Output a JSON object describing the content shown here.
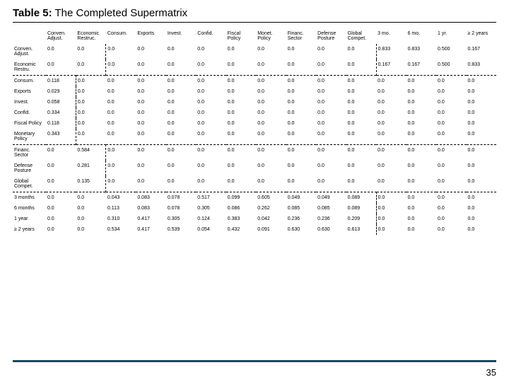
{
  "title_label": "Table 5:",
  "title_text": "The Completed Supermatrix",
  "page_number": "35",
  "footer_rule_color": "#154b61",
  "columns": [
    "Conven. Adjust.",
    "Economic Restruc.",
    "Consum.",
    "Exports",
    "Invest.",
    "Confid.",
    "Fiscal Policy",
    "Monet. Policy",
    "Financ. Sector",
    "Defense Posture",
    "Global Compet.",
    "3 mo.",
    "6 mo.",
    "1 yr.",
    "≥ 2 years"
  ],
  "rows": [
    {
      "label": "Conven. Adjust.",
      "cells": [
        "0.0",
        "0.0",
        "0.0",
        "0.0",
        "0.0",
        "0.0",
        "0.0",
        "0.0",
        "0.0",
        "0.0",
        "0.0",
        "0.833",
        "0.833",
        "0.500",
        "0.167"
      ]
    },
    {
      "label": "Economic Restru.",
      "cells": [
        "0.0",
        "0.0",
        "0.0",
        "0.0",
        "0.0",
        "0.0",
        "0.0",
        "0.0",
        "0.0",
        "0.0",
        "0.0",
        "0.167",
        "0.167",
        "0.500",
        "0.833"
      ]
    },
    {
      "label": "Consum.",
      "cells": [
        "0.118",
        "0.0",
        "0.0",
        "0.0",
        "0.0",
        "0.0",
        "0.0",
        "0.0",
        "0.0",
        "0.0",
        "0.0",
        "0.0",
        "0.0",
        "0.0",
        "0.0"
      ]
    },
    {
      "label": "Exports",
      "cells": [
        "0.029",
        "0.0",
        "0.0",
        "0.0",
        "0.0",
        "0.0",
        "0.0",
        "0.0",
        "0.0",
        "0.0",
        "0.0",
        "0.0",
        "0.0",
        "0.0",
        "0.0"
      ]
    },
    {
      "label": "Invest.",
      "cells": [
        "0.058",
        "0.0",
        "0.0",
        "0.0",
        "0.0",
        "0.0",
        "0.0",
        "0.0",
        "0.0",
        "0.0",
        "0.0",
        "0.0",
        "0.0",
        "0.0",
        "0.0"
      ]
    },
    {
      "label": "Confid.",
      "cells": [
        "0.334",
        "0.0",
        "0.0",
        "0.0",
        "0.0",
        "0.0",
        "0.0",
        "0.0",
        "0.0",
        "0.0",
        "0.0",
        "0.0",
        "0.0",
        "0.0",
        "0.0"
      ]
    },
    {
      "label": "Fiscal Policy",
      "cells": [
        "0.118",
        "0.0",
        "0.0",
        "0.0",
        "0.0",
        "0.0",
        "0.0",
        "0.0",
        "0.0",
        "0.0",
        "0.0",
        "0.0",
        "0.0",
        "0.0",
        "0.0"
      ]
    },
    {
      "label": "Monetary Policy",
      "cells": [
        "0.343",
        "0.0",
        "0.0",
        "0.0",
        "0.0",
        "0.0",
        "0.0",
        "0.0",
        "0.0",
        "0.0",
        "0.0",
        "0.0",
        "0.0",
        "0.0",
        "0.0"
      ]
    },
    {
      "label": "Financ. Sector",
      "cells": [
        "0.0",
        "0.584",
        "0.0",
        "0.0",
        "0.0",
        "0.0",
        "0.0",
        "0.0",
        "0.0",
        "0.0",
        "0.0",
        "0.0",
        "0.0",
        "0.0",
        "0.0"
      ]
    },
    {
      "label": "Defense Posture",
      "cells": [
        "0.0",
        "0.281",
        "0.0",
        "0.0",
        "0.0",
        "0.0",
        "0.0",
        "0.0",
        "0.0",
        "0.0",
        "0.0",
        "0.0",
        "0.0",
        "0.0",
        "0.0"
      ]
    },
    {
      "label": "Global Compet.",
      "cells": [
        "0.0",
        "0.135",
        "0.0",
        "0.0",
        "0.0",
        "0.0",
        "0.0",
        "0.0",
        "0.0",
        "0.0",
        "0.0",
        "0.0",
        "0.0",
        "0.0",
        "0.0"
      ]
    },
    {
      "label": "3 months",
      "cells": [
        "0.0",
        "0.0",
        "0.043",
        "0.083",
        "0.078",
        "0.517",
        "0.099",
        "0.605",
        "0.049",
        "0.049",
        "0.089",
        "0.0",
        "0.0",
        "0.0",
        "0.0"
      ]
    },
    {
      "label": "6 months",
      "cells": [
        "0.0",
        "0.0",
        "0.113",
        "0.083",
        "0.078",
        "0.305",
        "0.086",
        "0.262",
        "0.085",
        "0.085",
        "0.089",
        "0.0",
        "0.0",
        "0.0",
        "0.0"
      ]
    },
    {
      "label": "1 year",
      "cells": [
        "0.0",
        "0.0",
        "0.310",
        "0.417",
        "0.305",
        "0.124",
        "0.383",
        "0.042",
        "0.236",
        "0.236",
        "0.209",
        "0.0",
        "0.0",
        "0.0",
        "0.0"
      ]
    },
    {
      "label": "≥ 2 years",
      "cells": [
        "0.0",
        "0.0",
        "0.534",
        "0.417",
        "0.539",
        "0.054",
        "0.432",
        "0.091",
        "0.630",
        "0.630",
        "0.613",
        "0.0",
        "0.0",
        "0.0",
        "0.0"
      ]
    }
  ],
  "dash_rows_top": [
    2,
    8,
    11
  ],
  "dash_col_right_after": {
    "0-1": 1,
    "2-7": 0,
    "8-10": 1,
    "11-14": 10
  },
  "dash_col_left_before_last_block": 11
}
